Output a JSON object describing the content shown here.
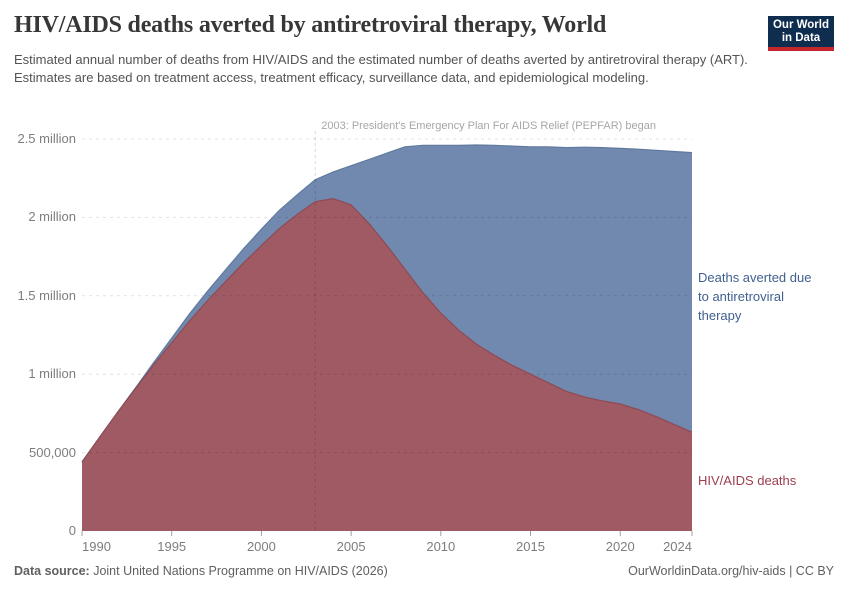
{
  "header": {
    "title": "HIV/AIDS deaths averted by antiretroviral therapy, World",
    "subtitle": "Estimated annual number of deaths from HIV/AIDS and the estimated number of deaths averted by antiretroviral therapy (ART). Estimates are based on treatment access, treatment efficacy, surveillance data, and epidemiological modeling.",
    "logo_line1": "Our World",
    "logo_line2": "in Data",
    "logo_bg": "#0f2d4e",
    "logo_stripe": "#c4262b"
  },
  "chart_data": {
    "type": "area",
    "stacked": true,
    "title": "HIV/AIDS deaths averted by antiretroviral therapy, World",
    "xlabel": "",
    "ylabel": "",
    "x": [
      1990,
      1991,
      1992,
      1993,
      1994,
      1995,
      1996,
      1997,
      1998,
      1999,
      2000,
      2001,
      2002,
      2003,
      2004,
      2005,
      2006,
      2007,
      2008,
      2009,
      2010,
      2011,
      2012,
      2013,
      2014,
      2015,
      2016,
      2017,
      2018,
      2019,
      2020,
      2021,
      2022,
      2023,
      2024
    ],
    "series": [
      {
        "name": "HIV/AIDS deaths",
        "color": "#a05a63",
        "edge_color": "#8e4a55",
        "values": [
          440000,
          600000,
          760000,
          910000,
          1060000,
          1200000,
          1340000,
          1470000,
          1590000,
          1710000,
          1820000,
          1930000,
          2020000,
          2100000,
          2120000,
          2080000,
          1960000,
          1820000,
          1670000,
          1520000,
          1390000,
          1280000,
          1190000,
          1120000,
          1055000,
          1000000,
          945000,
          890000,
          855000,
          830000,
          810000,
          775000,
          730000,
          680000,
          630000
        ]
      },
      {
        "name": "Deaths averted due to antiretroviral therapy",
        "color": "#7189ae",
        "edge_color": "#60799f",
        "values": [
          0,
          0,
          0,
          5000,
          15000,
          30000,
          45000,
          60000,
          75000,
          90000,
          105000,
          115000,
          125000,
          140000,
          170000,
          250000,
          410000,
          590000,
          780000,
          940000,
          1070000,
          1180000,
          1272000,
          1340000,
          1400000,
          1450000,
          1505000,
          1555000,
          1593000,
          1615000,
          1630000,
          1660000,
          1698000,
          1740000,
          1783000
        ]
      }
    ],
    "ylim": [
      0,
      2500000
    ],
    "yticks": [
      {
        "value": 0,
        "label": "0"
      },
      {
        "value": 500000,
        "label": "500,000"
      },
      {
        "value": 1000000,
        "label": "1 million"
      },
      {
        "value": 1500000,
        "label": "1.5 million"
      },
      {
        "value": 2000000,
        "label": "2 million"
      },
      {
        "value": 2500000,
        "label": "2.5 million"
      }
    ],
    "xticks": [
      1990,
      1995,
      2000,
      2005,
      2010,
      2015,
      2020,
      2024
    ],
    "grid": "horizontal-dashed",
    "legend_position": "right-inline",
    "annotation": {
      "year": 2003,
      "text": "2003: President's Emergency Plan For AIDS Relief (PEPFAR) began"
    }
  },
  "series_labels": {
    "averted_line1": "Deaths averted due",
    "averted_line2": "to antiretroviral",
    "averted_line3": "therapy",
    "averted_color": "#40608f",
    "deaths": "HIV/AIDS deaths",
    "deaths_color": "#9d3e4e"
  },
  "footer": {
    "source_prefix": "Data source:",
    "source_text": " Joint United Nations Programme on HIV/AIDS (2026)",
    "credit": "OurWorldinData.org/hiv-aids | CC BY"
  }
}
